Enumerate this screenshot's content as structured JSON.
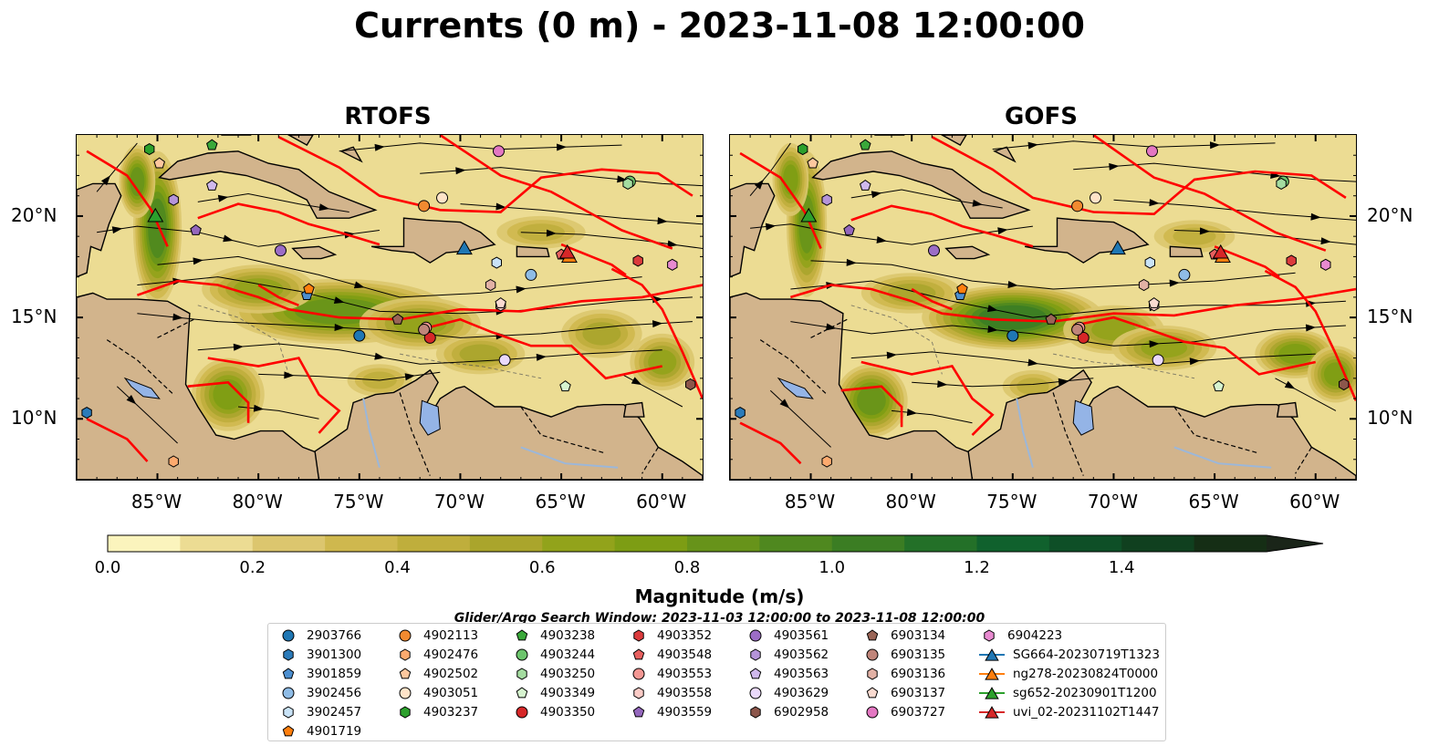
{
  "title": "Currents (0 m) - 2023-11-08 12:00:00",
  "panels": [
    {
      "title": "RTOFS",
      "y_axis_side": "left"
    },
    {
      "title": "GOFS",
      "y_axis_side": "right"
    }
  ],
  "map": {
    "lon_range": [
      -89,
      -58
    ],
    "lat_range": [
      7,
      24
    ],
    "lon_ticks": [
      "85°W",
      "80°W",
      "75°W",
      "70°W",
      "65°W",
      "60°W"
    ],
    "lat_ticks": [
      "20°N",
      "15°N",
      "10°N"
    ],
    "land_color": "#d2b48c",
    "current_path_color": "#ff0000"
  },
  "colorbar": {
    "label": "Magnitude (m/s)",
    "range": [
      0,
      1.6
    ],
    "extend": "max",
    "ticks": [
      "0.0",
      "0.2",
      "0.4",
      "0.6",
      "0.8",
      "1.0",
      "1.2",
      "1.4"
    ],
    "colors": [
      "#fbf4bd",
      "#ecdc93",
      "#dcc66e",
      "#cfb84e",
      "#bfae3c",
      "#aaa52c",
      "#92a31b",
      "#7d9d14",
      "#67931a",
      "#4f881f",
      "#3b7d23",
      "#237028",
      "#10612d",
      "#0e4f27",
      "#10401f",
      "#152e15",
      "#1a2519"
    ]
  },
  "search_window": "Glider/Argo Search Window: 2023-11-03 12:00:00 to 2023-11-08 12:00:00",
  "legend": {
    "columns": [
      [
        {
          "label": "2903766",
          "marker": "circle",
          "color": "#1f77b4"
        },
        {
          "label": "3901300",
          "marker": "hexagon",
          "color": "#2b7bba"
        },
        {
          "label": "3901859",
          "marker": "pentagon",
          "color": "#4c8fd0"
        },
        {
          "label": "3902456",
          "marker": "circle",
          "color": "#8fbce6"
        },
        {
          "label": "3902457",
          "marker": "hexagon",
          "color": "#c9e3f7"
        },
        {
          "label": "4901719",
          "marker": "pentagon",
          "color": "#ff7f0e"
        }
      ],
      [
        {
          "label": "4902113",
          "marker": "circle",
          "color": "#f28a30"
        },
        {
          "label": "4902476",
          "marker": "hexagon",
          "color": "#fdaa6e"
        },
        {
          "label": "4902502",
          "marker": "pentagon",
          "color": "#fdc79e"
        },
        {
          "label": "4903051",
          "marker": "circle",
          "color": "#ffe3c8"
        },
        {
          "label": "4903237",
          "marker": "hexagon",
          "color": "#2ca02c"
        }
      ],
      [
        {
          "label": "4903238",
          "marker": "pentagon",
          "color": "#3aa83a"
        },
        {
          "label": "4903244",
          "marker": "circle",
          "color": "#6cc46c"
        },
        {
          "label": "4903250",
          "marker": "hexagon",
          "color": "#a4dca0"
        },
        {
          "label": "4903349",
          "marker": "pentagon",
          "color": "#d6f3cf"
        },
        {
          "label": "4903350",
          "marker": "circle",
          "color": "#d62728"
        }
      ],
      [
        {
          "label": "4903352",
          "marker": "hexagon",
          "color": "#dc3b3c"
        },
        {
          "label": "4903548",
          "marker": "pentagon",
          "color": "#e8605f"
        },
        {
          "label": "4903553",
          "marker": "circle",
          "color": "#f39793"
        },
        {
          "label": "4903558",
          "marker": "hexagon",
          "color": "#fbcbc6"
        },
        {
          "label": "4903559",
          "marker": "pentagon",
          "color": "#9467bd"
        }
      ],
      [
        {
          "label": "4903561",
          "marker": "circle",
          "color": "#9c6dc6"
        },
        {
          "label": "4903562",
          "marker": "hexagon",
          "color": "#b594d9"
        },
        {
          "label": "4903563",
          "marker": "pentagon",
          "color": "#cfb8ec"
        },
        {
          "label": "4903629",
          "marker": "circle",
          "color": "#ead9fb"
        },
        {
          "label": "6902958",
          "marker": "hexagon",
          "color": "#8c564b"
        }
      ],
      [
        {
          "label": "6903134",
          "marker": "pentagon",
          "color": "#9a6557"
        },
        {
          "label": "6903135",
          "marker": "circle",
          "color": "#c0857a"
        },
        {
          "label": "6903136",
          "marker": "hexagon",
          "color": "#e2b1a5"
        },
        {
          "label": "6903137",
          "marker": "pentagon",
          "color": "#fadad0"
        },
        {
          "label": "6903727",
          "marker": "circle",
          "color": "#e377c2"
        }
      ],
      [
        {
          "label": "6904223",
          "marker": "hexagon",
          "color": "#e88ad0"
        },
        {
          "label": "SG664-20230719T1323",
          "marker": "triangle-line",
          "color": "#1f77b4"
        },
        {
          "label": "ng278-20230824T0000",
          "marker": "triangle-line",
          "color": "#ff7f0e"
        },
        {
          "label": "sg652-20230901T1200",
          "marker": "triangle-line",
          "color": "#2ca02c"
        },
        {
          "label": "uvi_02-20231102T1447",
          "marker": "triangle-line",
          "color": "#d62728"
        }
      ]
    ]
  },
  "observations": [
    {
      "id": "2903766",
      "lon": -75.0,
      "lat": 14.1,
      "marker": "circle",
      "color": "#1f77b4"
    },
    {
      "id": "3901300",
      "lon": -88.5,
      "lat": 10.3,
      "marker": "hexagon",
      "color": "#2b7bba"
    },
    {
      "id": "3901859",
      "lon": -77.6,
      "lat": 16.1,
      "marker": "pentagon",
      "color": "#4c8fd0"
    },
    {
      "id": "3902456",
      "lon": -66.5,
      "lat": 17.1,
      "marker": "circle",
      "color": "#8fbce6"
    },
    {
      "id": "3902457",
      "lon": -68.2,
      "lat": 17.7,
      "marker": "hexagon",
      "color": "#c9e3f7"
    },
    {
      "id": "4901719",
      "lon": -77.5,
      "lat": 16.4,
      "marker": "pentagon",
      "color": "#ff7f0e"
    },
    {
      "id": "4902113",
      "lon": -71.8,
      "lat": 20.5,
      "marker": "circle",
      "color": "#f28a30"
    },
    {
      "id": "4902476",
      "lon": -84.2,
      "lat": 7.9,
      "marker": "hexagon",
      "color": "#fdaa6e"
    },
    {
      "id": "4902502",
      "lon": -84.9,
      "lat": 22.6,
      "marker": "pentagon",
      "color": "#fdc79e"
    },
    {
      "id": "4903051",
      "lon": -70.9,
      "lat": 20.9,
      "marker": "circle",
      "color": "#ffe3c8"
    },
    {
      "id": "4903237",
      "lon": -85.4,
      "lat": 23.3,
      "marker": "hexagon",
      "color": "#2ca02c"
    },
    {
      "id": "4903238",
      "lon": -82.3,
      "lat": 23.5,
      "marker": "pentagon",
      "color": "#3aa83a"
    },
    {
      "id": "4903244",
      "lon": -61.6,
      "lat": 21.7,
      "marker": "circle",
      "color": "#6cc46c"
    },
    {
      "id": "4903250",
      "lon": -61.7,
      "lat": 21.6,
      "marker": "hexagon",
      "color": "#a4dca0"
    },
    {
      "id": "4903349",
      "lon": -64.8,
      "lat": 11.6,
      "marker": "pentagon",
      "color": "#d6f3cf"
    },
    {
      "id": "4903350",
      "lon": -71.5,
      "lat": 14.0,
      "marker": "circle",
      "color": "#d62728"
    },
    {
      "id": "4903352",
      "lon": -61.2,
      "lat": 17.8,
      "marker": "hexagon",
      "color": "#dc3b3c"
    },
    {
      "id": "4903548",
      "lon": -65.0,
      "lat": 18.1,
      "marker": "pentagon",
      "color": "#e8605f"
    },
    {
      "id": "4903553",
      "lon": -71.7,
      "lat": 14.5,
      "marker": "circle",
      "color": "#f39793"
    },
    {
      "id": "4903558",
      "lon": -68.0,
      "lat": 15.6,
      "marker": "hexagon",
      "color": "#fbcbc6"
    },
    {
      "id": "4903559",
      "lon": -83.1,
      "lat": 19.3,
      "marker": "pentagon",
      "color": "#9467bd"
    },
    {
      "id": "4903561",
      "lon": -78.9,
      "lat": 18.3,
      "marker": "circle",
      "color": "#9c6dc6"
    },
    {
      "id": "4903562",
      "lon": -84.2,
      "lat": 20.8,
      "marker": "hexagon",
      "color": "#b594d9"
    },
    {
      "id": "4903563",
      "lon": -82.3,
      "lat": 21.5,
      "marker": "pentagon",
      "color": "#cfb8ec"
    },
    {
      "id": "4903629",
      "lon": -67.8,
      "lat": 12.9,
      "marker": "circle",
      "color": "#ead9fb"
    },
    {
      "id": "6902958",
      "lon": -58.6,
      "lat": 11.7,
      "marker": "hexagon",
      "color": "#8c564b"
    },
    {
      "id": "6903134",
      "lon": -73.1,
      "lat": 14.9,
      "marker": "pentagon",
      "color": "#9a6557"
    },
    {
      "id": "6903135",
      "lon": -71.8,
      "lat": 14.4,
      "marker": "circle",
      "color": "#c0857a"
    },
    {
      "id": "6903136",
      "lon": -68.5,
      "lat": 16.6,
      "marker": "hexagon",
      "color": "#e2b1a5"
    },
    {
      "id": "6903137",
      "lon": -68.0,
      "lat": 15.7,
      "marker": "pentagon",
      "color": "#fadad0"
    },
    {
      "id": "6903727",
      "lon": -68.1,
      "lat": 23.2,
      "marker": "circle",
      "color": "#e377c2"
    },
    {
      "id": "6904223",
      "lon": -59.5,
      "lat": 17.6,
      "marker": "hexagon",
      "color": "#e88ad0"
    },
    {
      "id": "SG664-20230719T1323",
      "lon": -69.8,
      "lat": 18.4,
      "marker": "triangle",
      "color": "#1f77b4"
    },
    {
      "id": "ng278-20230824T0000",
      "lon": -64.6,
      "lat": 18.0,
      "marker": "triangle",
      "color": "#ff7f0e"
    },
    {
      "id": "sg652-20230901T1200",
      "lon": -85.1,
      "lat": 20.0,
      "marker": "triangle",
      "color": "#2ca02c"
    },
    {
      "id": "uvi_02-20231102T1447",
      "lon": -64.7,
      "lat": 18.2,
      "marker": "triangle",
      "color": "#d62728"
    }
  ]
}
